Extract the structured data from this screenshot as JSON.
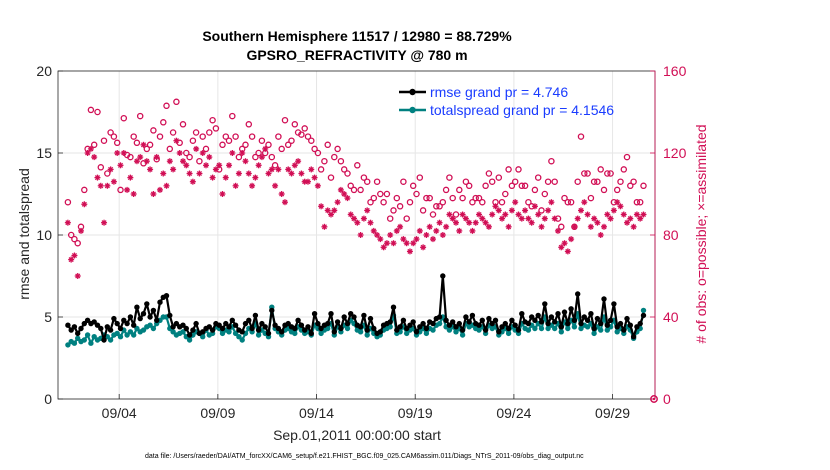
{
  "chart_data": {
    "type": "line",
    "title": "Southern Hemisphere 11517 / 12980 = 88.729%",
    "subtitle": "GPSRO_REFRACTIVITY @ 780 m",
    "xlabel": "Sep.01,2011 00:00:00 start",
    "ylabel": "rmse and totalspread",
    "ylabel_right": "# of obs: o=possible; ×=assimilated",
    "ylim": [
      0,
      20
    ],
    "yticks": [
      "0",
      "5",
      "10",
      "15",
      "20"
    ],
    "ylim_right": [
      0,
      160
    ],
    "yticks_right": [
      "0",
      "40",
      "80",
      "120",
      "160"
    ],
    "xlim": [
      0.5,
      30.75
    ],
    "xticks": [
      {
        "label": "09/04",
        "x": 3.6
      },
      {
        "label": "09/09",
        "x": 8.6
      },
      {
        "label": "09/14",
        "x": 13.6
      },
      {
        "label": "09/19",
        "x": 18.6
      },
      {
        "label": "09/24",
        "x": 23.6
      },
      {
        "label": "09/29",
        "x": 28.6
      }
    ],
    "grid": true,
    "legend_position": "top-right",
    "footer": "data file: /Users/raeder/DAI/ATM_forcXX/CAM6_setup/f.e21.FHIST_BGC.f09_025.CAM6assim.011/Diags_NTrS_2011-09/obs_diag_output.nc",
    "series": [
      {
        "name": "rmse grand pr = 4.746",
        "color": "#000000",
        "values": [
          4.5,
          4.2,
          4.4,
          4.0,
          4.3,
          4.6,
          4.8,
          4.6,
          4.7,
          4.5,
          4.3,
          3.6,
          4.4,
          4.2,
          4.9,
          4.6,
          4.3,
          4.8,
          4.6,
          5.0,
          4.5,
          5.6,
          4.9,
          5.2,
          5.8,
          5.0,
          5.4,
          4.8,
          5.9,
          6.2,
          6.3,
          5.1,
          4.4,
          4.6,
          4.4,
          4.5,
          4.3,
          3.9,
          4.2,
          4.6,
          4.0,
          4.1,
          4.3,
          4.4,
          4.2,
          4.6,
          4.5,
          4.3,
          4.6,
          4.4,
          4.8,
          4.5,
          4.2,
          4.1,
          4.6,
          4.8,
          4.3,
          5.1,
          4.2,
          4.6,
          4.4,
          4.0,
          5.4,
          4.5,
          4.3,
          4.1,
          4.5,
          4.6,
          4.4,
          4.3,
          4.8,
          4.5,
          4.2,
          4.4,
          4.0,
          5.2,
          4.6,
          4.3,
          4.5,
          4.6,
          5.2,
          4.1,
          4.7,
          4.3,
          5.0,
          4.6,
          5.2,
          5.0,
          4.5,
          4.4,
          5.1,
          4.2,
          4.9,
          4.3,
          4.0,
          4.1,
          4.5,
          4.6,
          4.7,
          5.6,
          4.2,
          4.4,
          4.8,
          4.3,
          4.5,
          4.7,
          4.1,
          4.4,
          4.6,
          4.3,
          4.7,
          4.6,
          4.9,
          5.0,
          7.5,
          4.8,
          4.5,
          4.7,
          4.4,
          4.6,
          4.2,
          5.0,
          4.7,
          5.1,
          4.6,
          4.5,
          4.8,
          4.2,
          4.9,
          4.6,
          4.8,
          4.1,
          4.4,
          4.6,
          4.3,
          4.8,
          4.5,
          4.2,
          5.2,
          4.7,
          4.6,
          5.0,
          4.8,
          5.1,
          4.7,
          5.8,
          4.6,
          5.0,
          4.7,
          5.2,
          4.4,
          5.3,
          4.6,
          5.5,
          4.8,
          6.4,
          4.6,
          5.0,
          4.8,
          5.2,
          4.3,
          4.9,
          4.6,
          6.1,
          4.5,
          4.8,
          5.8,
          4.4,
          4.6,
          4.2,
          4.9,
          4.5,
          3.8,
          4.4,
          4.6,
          5.1
        ]
      },
      {
        "name": "totalspread grand pr = 4.1546",
        "color": "#008080",
        "values": [
          3.3,
          3.5,
          3.4,
          3.7,
          3.5,
          3.6,
          3.9,
          3.4,
          3.8,
          3.6,
          3.7,
          3.9,
          3.8,
          3.6,
          3.9,
          4.0,
          3.8,
          4.2,
          3.9,
          4.1,
          3.9,
          4.3,
          4.1,
          4.2,
          4.4,
          4.5,
          4.3,
          4.6,
          4.8,
          5.0,
          5.0,
          4.3,
          4.1,
          3.9,
          4.0,
          4.1,
          3.8,
          3.6,
          3.9,
          4.1,
          4.0,
          3.8,
          4.2,
          3.9,
          4.0,
          4.4,
          4.3,
          4.0,
          4.2,
          4.1,
          4.4,
          4.0,
          3.8,
          3.6,
          4.0,
          4.3,
          4.1,
          4.6,
          3.9,
          4.2,
          4.0,
          3.8,
          5.6,
          4.3,
          4.1,
          3.9,
          4.2,
          4.3,
          4.1,
          4.0,
          4.4,
          4.2,
          4.0,
          4.1,
          3.9,
          4.5,
          4.3,
          4.0,
          4.2,
          4.3,
          4.6,
          3.9,
          4.4,
          4.1,
          4.5,
          4.3,
          4.8,
          4.6,
          4.2,
          4.1,
          4.5,
          3.9,
          4.3,
          4.0,
          3.8,
          3.9,
          4.2,
          4.3,
          4.4,
          5.1,
          4.0,
          4.1,
          4.4,
          4.0,
          4.2,
          4.3,
          3.9,
          4.1,
          4.3,
          4.0,
          4.3,
          4.2,
          4.5,
          4.6,
          5.0,
          4.4,
          4.2,
          4.4,
          4.1,
          4.3,
          3.9,
          4.6,
          4.4,
          4.5,
          4.3,
          4.2,
          4.4,
          4.0,
          4.5,
          4.3,
          4.4,
          3.9,
          4.1,
          4.3,
          4.0,
          4.4,
          4.2,
          4.0,
          4.6,
          4.3,
          4.2,
          4.5,
          4.3,
          4.6,
          4.3,
          5.0,
          4.3,
          4.5,
          4.3,
          4.6,
          4.1,
          4.7,
          4.3,
          4.8,
          4.4,
          5.2,
          4.3,
          4.5,
          4.4,
          4.6,
          4.0,
          4.4,
          4.2,
          5.0,
          4.2,
          4.4,
          4.8,
          4.1,
          4.3,
          4.0,
          4.4,
          4.2,
          3.7,
          4.1,
          4.3,
          5.4
        ]
      },
      {
        "name": "# of obs possible (o)",
        "color": "#d10f55",
        "values": [
          96,
          80,
          78,
          76,
          84,
          102,
          122,
          141,
          124,
          140,
          113,
          126,
          110,
          130,
          128,
          125,
          102,
          137,
          119,
          118,
          128,
          125,
          138,
          115,
          122,
          124,
          131,
          117,
          128,
          135,
          143,
          122,
          130,
          145,
          125,
          134,
          120,
          118,
          126,
          130,
          116,
          128,
          122,
          130,
          136,
          132,
          112,
          124,
          128,
          126,
          138,
          128,
          118,
          122,
          124,
          134,
          128,
          118,
          120,
          126,
          120,
          124,
          118,
          114,
          128,
          122,
          136,
          124,
          126,
          134,
          130,
          129,
          132,
          128,
          126,
          122,
          120,
          112,
          116,
          124,
          108,
          118,
          122,
          116,
          112,
          110,
          104,
          102,
          114,
          102,
          108,
          106,
          96,
          98,
          106,
          100,
          96,
          100,
          88,
          92,
          98,
          94,
          106,
          88,
          96,
          104,
          100,
          108,
          92,
          98,
          98,
          90,
          94,
          94,
          96,
          102,
          108,
          98,
          90,
          102,
          98,
          106,
          104,
          96,
          98,
          98,
          96,
          104,
          110,
          106,
          96,
          108,
          96,
          100,
          112,
          104,
          106,
          112,
          104,
          104,
          96,
          94,
          102,
          108,
          92,
          100,
          106,
          116,
          106,
          88,
          84,
          98,
          96,
          96,
          84,
          106,
          128,
          110,
          110,
          98,
          106,
          106,
          112,
          102,
          110,
          110,
          96,
          102,
          106,
          112,
          118,
          104,
          106,
          96,
          96,
          104
        ]
      },
      {
        "name": "# of obs assimilated (×)",
        "color": "#d10f55",
        "values": [
          86,
          68,
          70,
          60,
          82,
          95,
          120,
          122,
          118,
          108,
          104,
          86,
          104,
          112,
          106,
          120,
          114,
          120,
          102,
          108,
          100,
          116,
          118,
          124,
          116,
          112,
          100,
          118,
          102,
          110,
          104,
          116,
          112,
          126,
          120,
          116,
          114,
          110,
          106,
          122,
          110,
          120,
          114,
          118,
          108,
          112,
          114,
          100,
          108,
          114,
          120,
          104,
          110,
          120,
          116,
          110,
          104,
          108,
          114,
          118,
          122,
          110,
          112,
          104,
          112,
          100,
          96,
          112,
          110,
          114,
          116,
          110,
          106,
          106,
          112,
          108,
          104,
          94,
          84,
          92,
          90,
          92,
          96,
          102,
          100,
          98,
          90,
          88,
          86,
          80,
          88,
          92,
          86,
          82,
          80,
          78,
          74,
          76,
          80,
          76,
          82,
          84,
          78,
          76,
          72,
          76,
          78,
          82,
          74,
          80,
          84,
          78,
          82,
          86,
          80,
          84,
          90,
          88,
          86,
          82,
          90,
          88,
          86,
          82,
          86,
          90,
          88,
          86,
          84,
          90,
          94,
          92,
          88,
          90,
          84,
          92,
          96,
          90,
          88,
          92,
          88,
          86,
          94,
          90,
          84,
          88,
          92,
          96,
          88,
          82,
          74,
          76,
          72,
          78,
          84,
          88,
          92,
          96,
          90,
          84,
          88,
          86,
          80,
          84,
          90,
          88,
          92,
          96,
          94,
          90,
          86,
          88,
          84,
          90,
          88,
          90
        ]
      }
    ]
  }
}
